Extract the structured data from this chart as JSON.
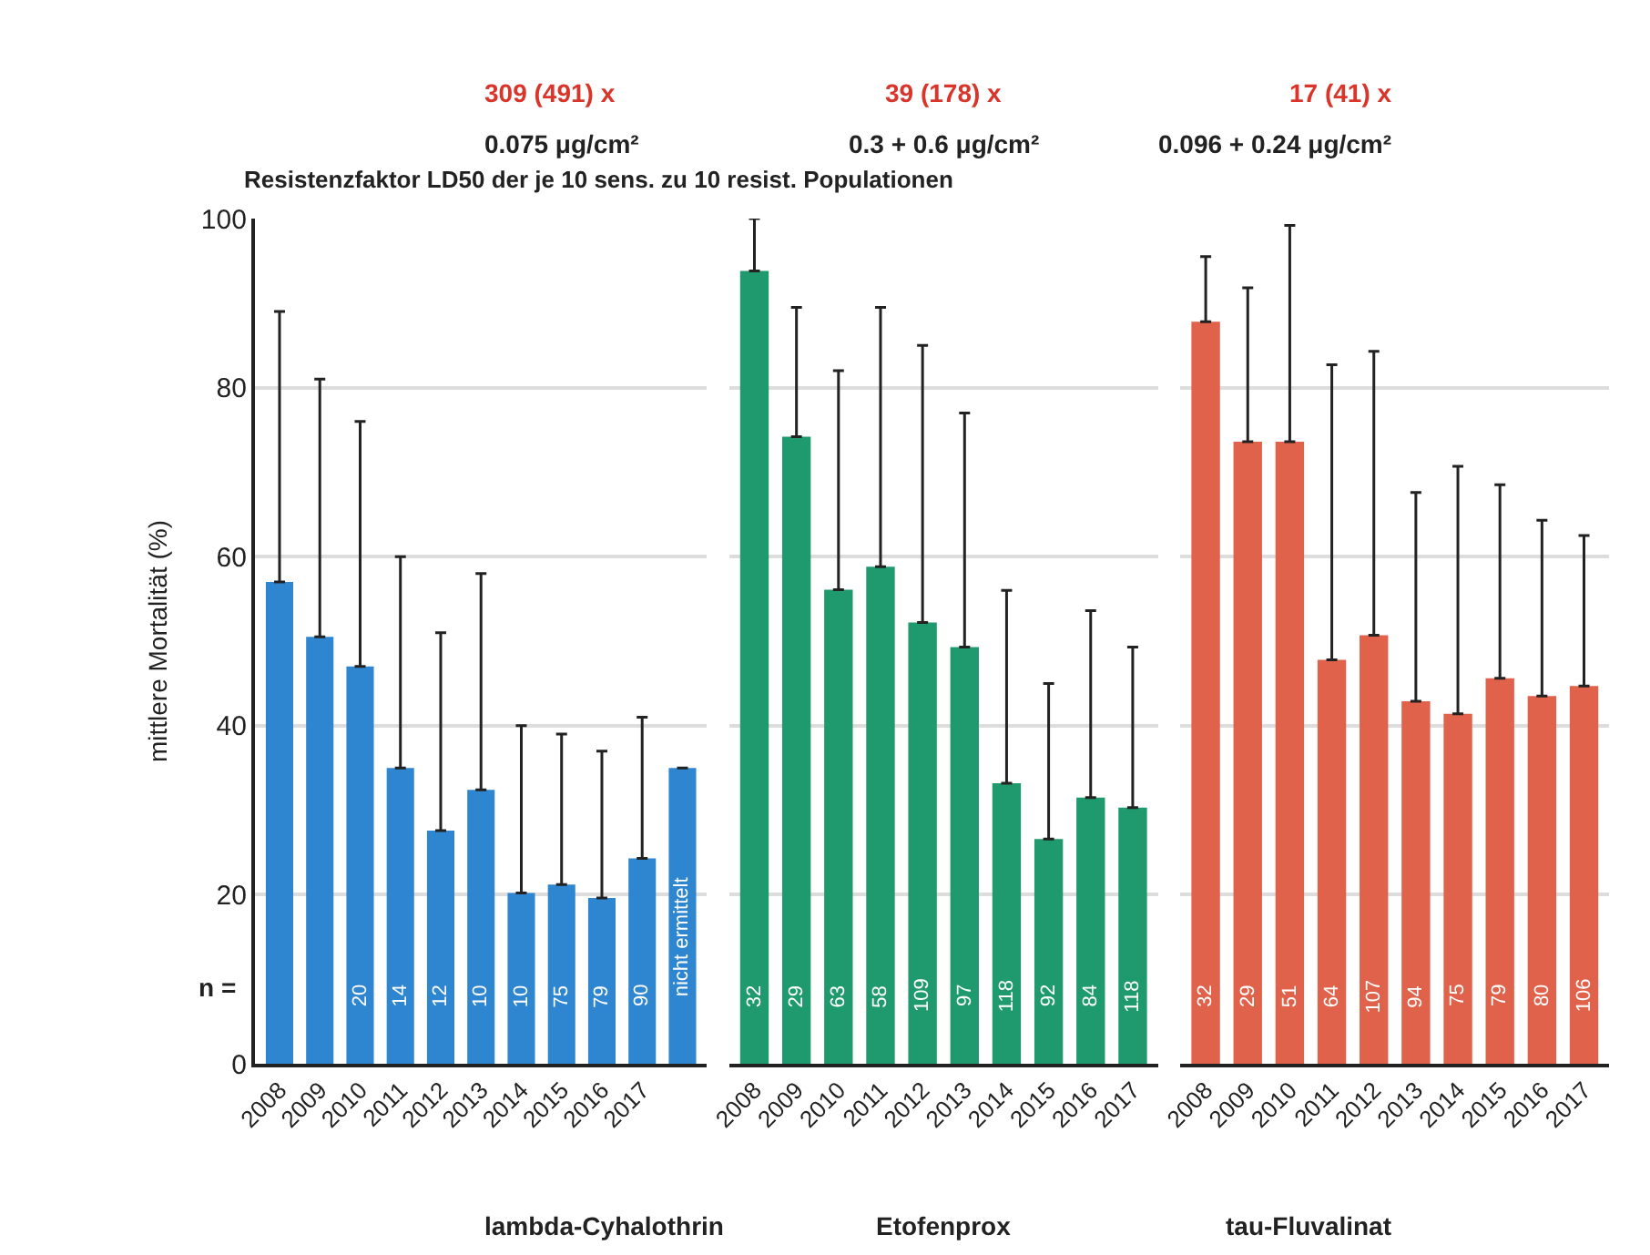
{
  "chart_data": [
    {
      "type": "bar",
      "title": "309 (491) x",
      "subtitle": "0.075 μg/cm²",
      "xlabel": "lambda-Cyhalothrin",
      "ylabel": "mittlere Mortalität (%)",
      "categories": [
        "2008",
        "2009",
        "2010",
        "2011",
        "2012",
        "2013",
        "2014",
        "2015",
        "2016",
        "2017",
        null
      ],
      "values": [
        57,
        50.5,
        47,
        35,
        27.6,
        32.4,
        20.2,
        21.2,
        19.6,
        24.3,
        35
      ],
      "errors": [
        [
          57,
          89
        ],
        [
          50.5,
          81
        ],
        [
          47,
          76
        ],
        [
          35,
          60
        ],
        [
          27.6,
          51
        ],
        [
          32.4,
          58
        ],
        [
          20.2,
          40
        ],
        [
          21.2,
          39
        ],
        [
          19.6,
          37
        ],
        [
          24.3,
          41
        ],
        null
      ],
      "color": "#2f86d0",
      "ylim": [
        0,
        100
      ],
      "yticks": [
        0,
        20,
        40,
        60,
        80,
        100
      ],
      "grid": "y",
      "annotations": [
        "Resistenzfaktor LD50 der je 10 sens. zu 10 resist. Populationen",
        "n =",
        {
          "text": "20",
          "x": "2010",
          "y": 8
        },
        {
          "text": "14",
          "x": "2011",
          "y": 8
        },
        {
          "text": "12",
          "x": "2012",
          "y": 8
        },
        {
          "text": "10",
          "x": "2013",
          "y": 8
        },
        {
          "text": "10",
          "x": "2014",
          "y": 8
        },
        {
          "text": "75",
          "x": "2015",
          "y": 8
        },
        {
          "text": "79",
          "x": "2016",
          "y": 8
        },
        {
          "text": "90",
          "x": "2017",
          "y": 8
        },
        "nicht ermittelt"
      ]
    },
    {
      "type": "bar",
      "title": "39 (178) x",
      "subtitle": "0.3 + 0.6 μg/cm²",
      "xlabel": "Etofenprox",
      "categories": [
        "2008",
        "2009",
        "2010",
        "2011",
        "2012",
        "2013",
        "2014",
        "2015",
        "2016",
        "2017"
      ],
      "values": [
        93.8,
        74.2,
        56.1,
        58.8,
        52.2,
        49.3,
        33.2,
        26.6,
        31.5,
        30.3
      ],
      "errors": [
        [
          93.8,
          100
        ],
        [
          74.2,
          89.5
        ],
        [
          56.1,
          82
        ],
        [
          58.8,
          89.5
        ],
        [
          52.2,
          85
        ],
        [
          49.3,
          77
        ],
        [
          33.2,
          56
        ],
        [
          26.6,
          45
        ],
        [
          31.5,
          53.6
        ],
        [
          30.3,
          49.3
        ]
      ],
      "color": "#1f9a6e",
      "ylim": [
        0,
        100
      ],
      "yticks": [
        0,
        20,
        40,
        60,
        80,
        100
      ],
      "grid": "y",
      "tick_labels": "x",
      "annotations": [
        {
          "text": "32",
          "x": "2008",
          "y": 8
        },
        {
          "text": "29",
          "x": "2009",
          "y": 8
        },
        {
          "text": "63",
          "x": "2010",
          "y": 8
        },
        {
          "text": "58",
          "x": "2011",
          "y": 8
        },
        {
          "text": "109",
          "x": "2012",
          "y": 8
        },
        {
          "text": "97",
          "x": "2013",
          "y": 8
        },
        {
          "text": "118",
          "x": "2014",
          "y": 8
        },
        {
          "text": "92",
          "x": "2015",
          "y": 8
        },
        {
          "text": "84",
          "x": "2016",
          "y": 8
        },
        {
          "text": "118",
          "x": "2017",
          "y": 8
        }
      ]
    },
    {
      "type": "bar",
      "title": "17 (41) x",
      "subtitle": "0.096 + 0.24 μg/cm²",
      "xlabel": "tau-Fluvalinat",
      "categories": [
        "2008",
        "2009",
        "2010",
        "2011",
        "2012",
        "2013",
        "2014",
        "2015",
        "2016",
        "2017"
      ],
      "values": [
        87.8,
        73.6,
        73.6,
        47.8,
        50.7,
        42.9,
        41.4,
        45.6,
        43.5,
        44.7
      ],
      "errors": [
        [
          87.8,
          95.5
        ],
        [
          73.6,
          91.8
        ],
        [
          73.6,
          99.2
        ],
        [
          47.8,
          82.7
        ],
        [
          50.7,
          84.3
        ],
        [
          42.9,
          67.6
        ],
        [
          41.4,
          70.7
        ],
        [
          45.6,
          68.5
        ],
        [
          43.5,
          64.3
        ],
        [
          44.7,
          62.5
        ]
      ],
      "color": "#e0624a",
      "ylim": [
        0,
        100
      ],
      "yticks": [
        0,
        20,
        40,
        60,
        80,
        100
      ],
      "grid": "y",
      "tick_labels": "x",
      "annotations": [
        {
          "text": "32",
          "x": "2008",
          "y": 8
        },
        {
          "text": "29",
          "x": "2009",
          "y": 8
        },
        {
          "text": "51",
          "x": "2010",
          "y": 8
        },
        {
          "text": "64",
          "x": "2011",
          "y": 8
        },
        {
          "text": "107",
          "x": "2012",
          "y": 8
        },
        {
          "text": "94",
          "x": "2013",
          "y": 8
        },
        {
          "text": "75",
          "x": "2014",
          "y": 8
        },
        {
          "text": "79",
          "x": "2015",
          "y": 8
        },
        {
          "text": "80",
          "x": "2016",
          "y": 8
        },
        {
          "text": "106",
          "x": "2017",
          "y": 8
        }
      ]
    }
  ]
}
